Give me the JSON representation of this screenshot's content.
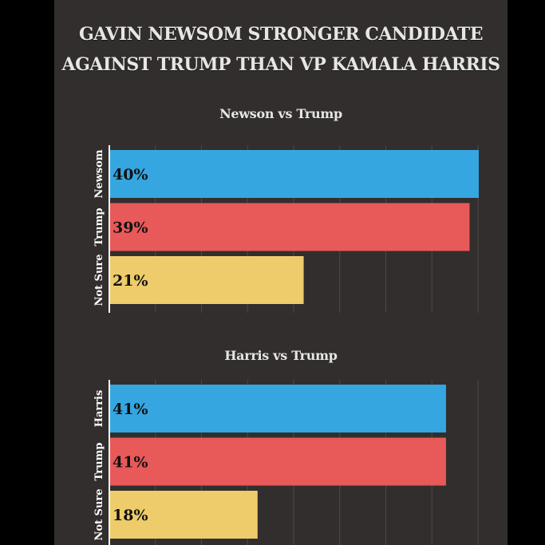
{
  "title": {
    "line1": "GAVIN NEWSOM STRONGER CANDIDATE",
    "line2": "AGAINST TRUMP THAN VP KAMALA HARRIS"
  },
  "colors": {
    "background": "#322e2d",
    "outer": "#000000",
    "blue": "#36a6e1",
    "red": "#e85959",
    "yellow": "#efcc6b"
  },
  "chart_data": [
    {
      "type": "bar",
      "orientation": "horizontal",
      "title": "Newson vs Trump",
      "categories": [
        "Newsom",
        "Trump",
        "Not Sure"
      ],
      "values": [
        40,
        39,
        21
      ],
      "labels": [
        "40%",
        "39%",
        "21%"
      ],
      "colors": [
        "#36a6e1",
        "#e85959",
        "#efcc6b"
      ],
      "xlim": [
        0,
        40
      ],
      "grid": true
    },
    {
      "type": "bar",
      "orientation": "horizontal",
      "title": "Harris vs Trump",
      "categories": [
        "Harris",
        "Trump",
        "Not Sure"
      ],
      "values": [
        41,
        41,
        18
      ],
      "labels": [
        "41%",
        "41%",
        "18%"
      ],
      "colors": [
        "#36a6e1",
        "#e85959",
        "#efcc6b"
      ],
      "xlim": [
        0,
        45
      ],
      "grid": true
    }
  ]
}
